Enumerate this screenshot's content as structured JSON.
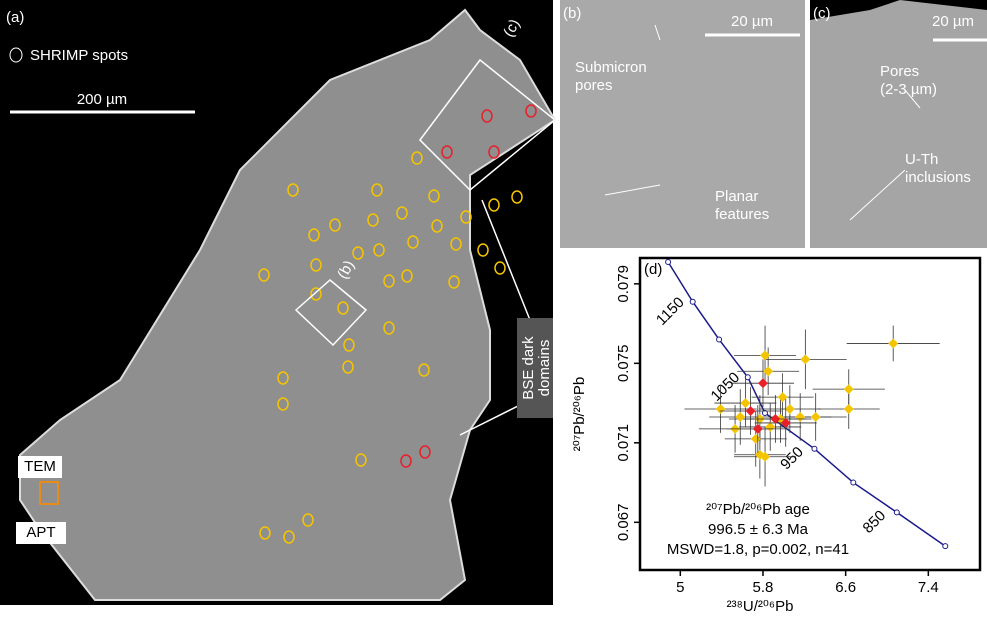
{
  "panels": {
    "a": {
      "label": "(a)",
      "legend": "SHRIMP spots",
      "scale": "200 µm",
      "box_c": "(c)",
      "box_b": "(b)",
      "dark": [
        "BSE dark",
        "domains"
      ],
      "tem": "TEM",
      "apt": "APT"
    },
    "b": {
      "label": "(b)",
      "scale": "20 µm",
      "pores": [
        "Submicron",
        "pores"
      ],
      "planar": [
        "Planar",
        "features"
      ]
    },
    "c": {
      "label": "(c)",
      "scale": "20 µm",
      "pores": [
        "Pores",
        "(2-3 µm)"
      ],
      "inclusions": [
        "U-Th",
        "inclusions"
      ]
    }
  },
  "chart_data": {
    "type": "scatter",
    "label": "(d)",
    "x_label": "²³⁸U/²⁰⁶Pb",
    "y_label": "²⁰⁷Pb/²⁰⁶Pb",
    "annotation": [
      "²⁰⁷Pb/²⁰⁶Pb age",
      "996.5 ± 6.3 Ma",
      "MSWD=1.8, p=0.002, n=41"
    ],
    "xlim": [
      4.61,
      7.9
    ],
    "xticks": [
      5,
      5.8,
      6.6,
      7.4
    ],
    "ylim": [
      0.0646,
      0.0803
    ],
    "yticks": [
      0.067,
      0.071,
      0.075,
      0.079
    ],
    "concordia": {
      "color": "#1a1a8c",
      "x": [
        4.882,
        5.12,
        5.375,
        5.653,
        5.819,
        6.298,
        6.674,
        7.095,
        7.564
      ],
      "values": [
        0.0801,
        0.0781,
        0.0762,
        0.0743,
        0.0725,
        0.0707,
        0.069,
        0.0675,
        0.0658
      ],
      "value_labels": [
        null,
        "1150",
        null,
        "1050",
        null,
        "950",
        null,
        "850",
        null
      ]
    },
    "series": [
      {
        "color": "#f5c400",
        "x": [
          7.06,
          6.21,
          5.85,
          5.99,
          6.63,
          6.63,
          5.82,
          5.39,
          5.58,
          5.77,
          6.16,
          6.31,
          5.73,
          5.82,
          5.77,
          5.97,
          5.63,
          6.06,
          5.87,
          5.53
        ],
        "values": [
          0.076,
          0.0752,
          0.0746,
          0.0733,
          0.0737,
          0.0727,
          0.0754,
          0.0727,
          0.0723,
          0.0722,
          0.0723,
          0.0723,
          0.0712,
          0.0703,
          0.0704,
          0.0722,
          0.073,
          0.0727,
          0.0718,
          0.0717
        ],
        "xerr": [
          0.45,
          0.4,
          0.3,
          0.3,
          0.35,
          0.3,
          0.3,
          0.35,
          0.3,
          0.3,
          0.3,
          0.3,
          0.3,
          0.3,
          0.25,
          0.3,
          0.3,
          0.3,
          0.3,
          0.35
        ],
        "yerr": [
          0.0009,
          0.0015,
          0.0012,
          0.0012,
          0.001,
          0.001,
          0.0015,
          0.0012,
          0.0014,
          0.0012,
          0.0012,
          0.0012,
          0.0014,
          0.0015,
          0.0012,
          0.0012,
          0.0012,
          0.0012,
          0.0012,
          0.0012
        ]
      },
      {
        "color": "#e8202a",
        "x": [
          5.8,
          5.68,
          5.92,
          5.75,
          6.02
        ],
        "values": [
          0.074,
          0.0726,
          0.0722,
          0.0717,
          0.072
        ],
        "xerr": [
          0.3,
          0.3,
          0.3,
          0.3,
          0.3
        ],
        "yerr": [
          0.0012,
          0.0012,
          0.0012,
          0.0012,
          0.0012
        ]
      }
    ]
  }
}
